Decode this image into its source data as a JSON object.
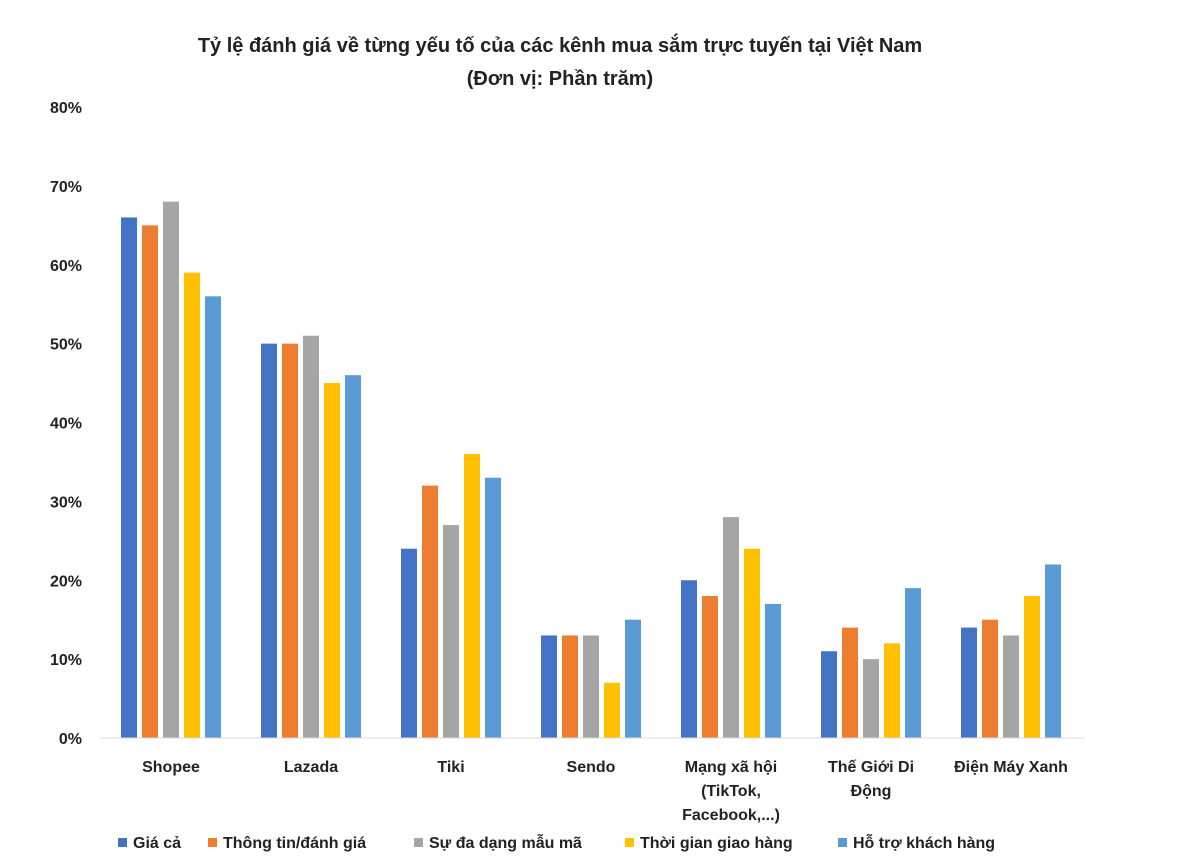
{
  "chart_data": {
    "type": "bar",
    "title": "Tỷ lệ đánh giá về từng yếu tố của các kênh mua sắm trực tuyến tại Việt Nam",
    "subtitle": "(Đơn vị: Phần trăm)",
    "xlabel": "",
    "ylabel": "",
    "ylim": [
      0,
      80
    ],
    "yticks": [
      0,
      10,
      20,
      30,
      40,
      50,
      60,
      70,
      80
    ],
    "ytick_labels": [
      "0%",
      "10%",
      "20%",
      "30%",
      "40%",
      "50%",
      "60%",
      "70%",
      "80%"
    ],
    "grid": false,
    "legend_position": "bottom",
    "categories": [
      [
        "Shopee"
      ],
      [
        "Lazada"
      ],
      [
        "Tiki"
      ],
      [
        "Sendo"
      ],
      [
        "Mạng xã hội",
        "(TikTok,",
        "Facebook,...)"
      ],
      [
        "Thế Giới Di",
        "Động"
      ],
      [
        "Điện Máy Xanh"
      ]
    ],
    "series": [
      {
        "name": "Giá cả",
        "color": "#4472C4",
        "values": [
          66,
          50,
          24,
          13,
          20,
          11,
          14
        ]
      },
      {
        "name": "Thông tin/đánh giá",
        "color": "#ED7D31",
        "values": [
          65,
          50,
          32,
          13,
          18,
          14,
          15
        ]
      },
      {
        "name": "Sự đa dạng mẫu mã",
        "color": "#A5A5A5",
        "values": [
          68,
          51,
          27,
          13,
          28,
          10,
          13
        ]
      },
      {
        "name": "Thời gian giao hàng",
        "color": "#FFC000",
        "values": [
          59,
          45,
          36,
          7,
          24,
          12,
          18
        ]
      },
      {
        "name": "Hỗ trợ khách hàng",
        "color": "#5B9BD5",
        "values": [
          56,
          46,
          33,
          15,
          17,
          19,
          22
        ]
      }
    ]
  }
}
